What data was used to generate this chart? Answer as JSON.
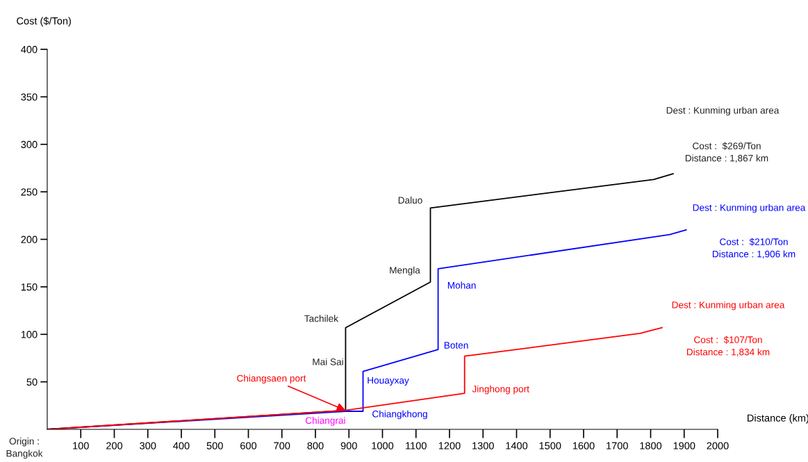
{
  "chart_data": {
    "type": "line",
    "xlabel": "Distance (km)",
    "ylabel": "Cost ($/Ton)",
    "xlim": [
      0,
      2000
    ],
    "ylim": [
      0,
      400
    ],
    "xticks": [
      100,
      200,
      300,
      400,
      500,
      600,
      700,
      800,
      900,
      1000,
      1100,
      1200,
      1300,
      1400,
      1500,
      1600,
      1700,
      1800,
      1900,
      2000
    ],
    "yticks": [
      50,
      100,
      150,
      200,
      250,
      300,
      350,
      400
    ],
    "grid": false,
    "marker": "none",
    "line_style": "solid",
    "series": [
      {
        "color": "#000000",
        "x": [
          0,
          890,
          890,
          1143,
          1143,
          1809,
          1867
        ],
        "values": [
          0,
          20,
          107,
          155,
          233,
          263,
          269
        ]
      },
      {
        "color": "#0000ff",
        "x": [
          0,
          890,
          942,
          942,
          1166,
          1166,
          1857,
          1906
        ],
        "values": [
          0,
          19,
          19,
          61,
          84,
          169,
          205,
          210
        ]
      },
      {
        "color": "#ff0000",
        "x": [
          0,
          890,
          1245,
          1245,
          1768,
          1834
        ],
        "values": [
          0,
          20,
          38,
          77,
          101,
          107
        ]
      }
    ],
    "annotations": [
      {
        "text": "Tachilek",
        "x": 890,
        "y": 107
      },
      "Mai Sai",
      {
        "text": "Mengla",
        "x": 1143,
        "y": 155
      },
      {
        "text": "Daluo",
        "x": 1143,
        "y": 233
      },
      {
        "text": "Houayxay",
        "x": 942,
        "y": 61
      },
      {
        "text": "Chiangkhong",
        "x": 942,
        "y": 19
      },
      {
        "text": "Boten",
        "x": 1166,
        "y": 84
      },
      {
        "text": "Mohan",
        "x": 1166,
        "y": 169
      },
      {
        "text": "Jinghong port",
        "x": 1245,
        "y": 38
      },
      {
        "text": "Chiangrai",
        "x": 834,
        "y": 18
      },
      {
        "text": "Chiangsaen port",
        "x": 890,
        "y": 20
      },
      "Dest : Kunming urban area",
      "Cost :  $269/Ton\nDistance : 1,867 km",
      "Dest : Kunming urban area",
      "Cost :  $210/Ton\nDistance : 1,906 km",
      "Dest : Kunming urban area",
      "Cost :  $107/Ton\nDistance : 1,834 km",
      {
        "text": "Origin :\nBangkok",
        "x": 0,
        "y": 0
      }
    ]
  }
}
